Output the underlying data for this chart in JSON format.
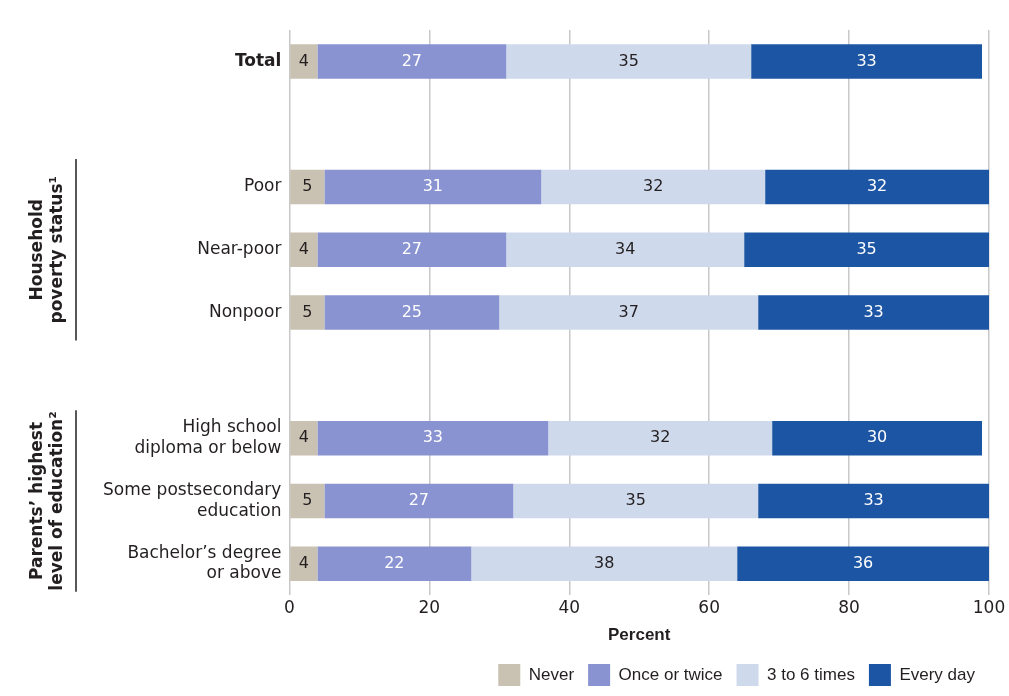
{
  "chart_data": {
    "type": "bar",
    "orientation": "horizontal",
    "stacked": true,
    "categories": [
      "Total",
      null,
      "Poor",
      "Near-poor",
      "Nonpoor",
      null,
      "High school\ndiploma or below",
      "Some postsecondary\neducation",
      "Bachelor’s degree\nor above"
    ],
    "series": [
      {
        "name": "Never",
        "color": "#c9c2b2",
        "values": [
          4,
          null,
          5,
          4,
          5,
          null,
          4,
          5,
          4
        ]
      },
      {
        "name": "Once or twice",
        "color": "#8a93d1",
        "values": [
          27,
          null,
          31,
          27,
          25,
          null,
          33,
          27,
          22
        ]
      },
      {
        "name": "3 to 6 times",
        "color": "#cfd9ec",
        "values": [
          35,
          null,
          32,
          34,
          37,
          null,
          32,
          35,
          38
        ]
      },
      {
        "name": "Every day",
        "color": "#1b55a3",
        "values": [
          33,
          null,
          32,
          35,
          33,
          null,
          30,
          33,
          36
        ]
      }
    ],
    "xlim": [
      0,
      100
    ],
    "xticks": [
      0,
      20,
      40,
      60,
      80,
      100
    ],
    "xlabel": "Percent",
    "grid": "x",
    "legend": "bottom",
    "data_labels": true,
    "annotations": [
      "Household\npoverty status¹",
      "Parents’ highest\nlevel of education²"
    ]
  }
}
